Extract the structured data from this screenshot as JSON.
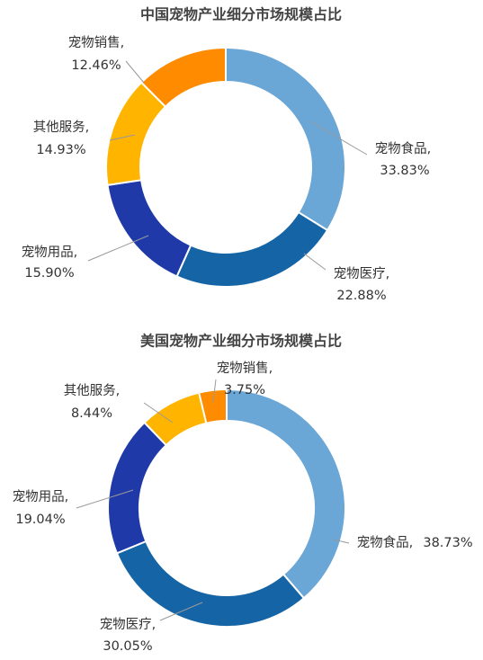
{
  "chart_data": [
    {
      "type": "pie",
      "title": "中国宠物产业细分市场规模占比",
      "categories": [
        "宠物食品,",
        "宠物医疗,",
        "宠物用品,",
        "其他服务,",
        "宠物销售,"
      ],
      "values": [
        33.83,
        22.88,
        15.9,
        14.93,
        12.46
      ],
      "value_labels": [
        "33.83%",
        "22.88%",
        "15.90%",
        "14.93%",
        "12.46%"
      ],
      "colors": [
        "#6aa6d6",
        "#1565a6",
        "#1f3aa8",
        "#ffb400",
        "#ff8c00"
      ]
    },
    {
      "type": "pie",
      "title": "美国宠物产业细分市场规模占比",
      "categories": [
        "宠物食品,",
        "宠物医疗,",
        "宠物用品,",
        "其他服务,",
        "宠物销售,"
      ],
      "values": [
        38.73,
        30.05,
        19.04,
        8.44,
        3.75
      ],
      "value_labels": [
        "38.73%",
        "30.05%",
        "19.04%",
        "8.44%",
        "3.75%"
      ],
      "colors": [
        "#6aa6d6",
        "#1565a6",
        "#1f3aa8",
        "#ffb400",
        "#ff8c00"
      ]
    }
  ]
}
